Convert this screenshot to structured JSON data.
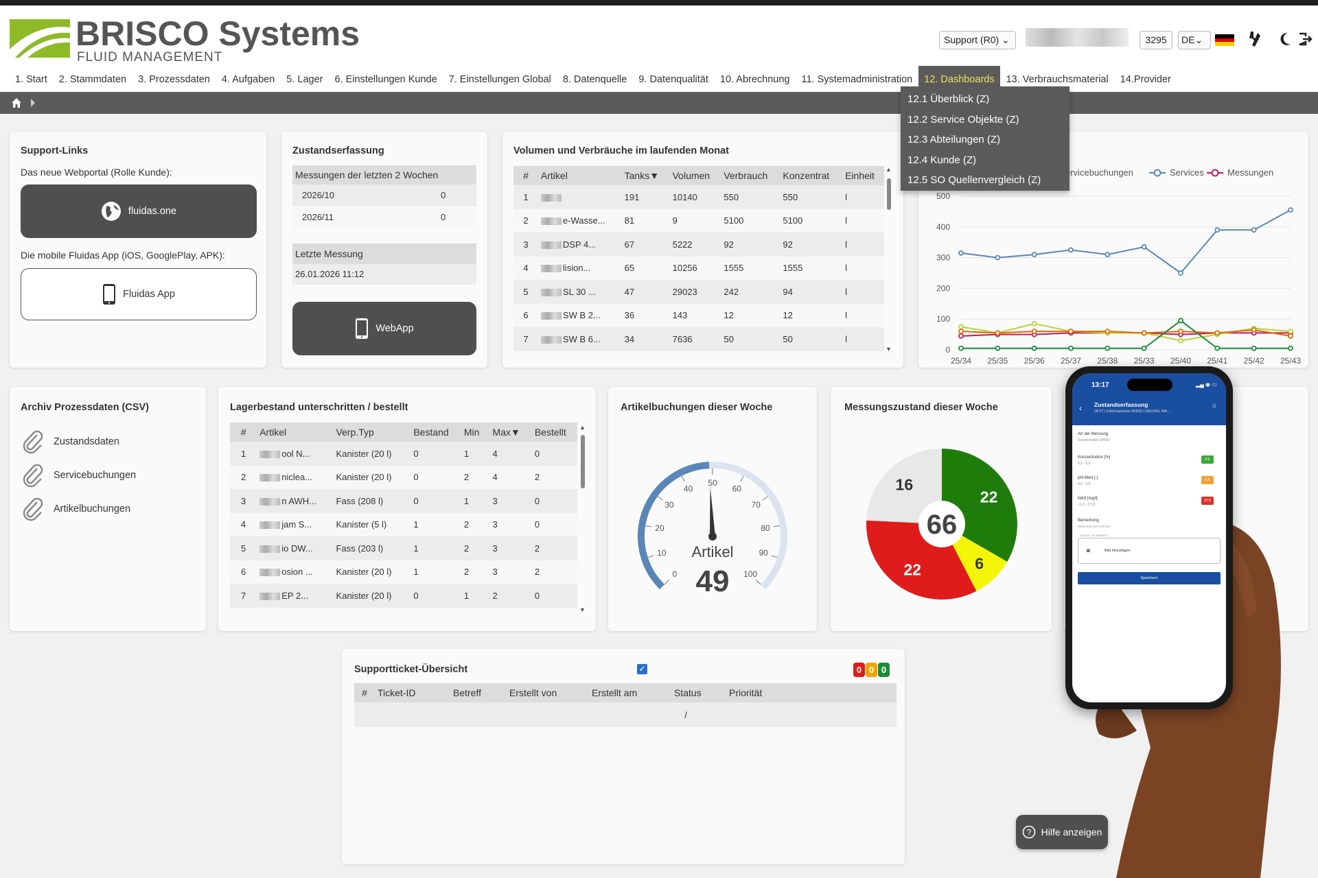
{
  "app": {
    "brand": "BRISCO Systems",
    "brand_sub": "FLUID MANAGEMENT",
    "support_select": "Support (R0)",
    "user_id_suffix": "3295",
    "language": "DE"
  },
  "colors": {
    "accent": "#e8e35c",
    "brand_green": "#8fba28",
    "dark": "#4f4f4f",
    "line_blue": "#5a86b8",
    "red": "#e01b1b",
    "yellow": "#f5f50a",
    "green": "#1e7d0a",
    "magenta": "#c2185b"
  },
  "menu": [
    {
      "label": "1. Start"
    },
    {
      "label": "2. Stammdaten"
    },
    {
      "label": "3. Prozessdaten"
    },
    {
      "label": "4. Aufgaben"
    },
    {
      "label": "5. Lager"
    },
    {
      "label": "6. Einstellungen Kunde"
    },
    {
      "label": "7. Einstellungen Global"
    },
    {
      "label": "8. Datenquelle"
    },
    {
      "label": "9. Datenqualität"
    },
    {
      "label": "10. Abrechnung"
    },
    {
      "label": "11. Systemadministration"
    },
    {
      "label": "12. Dashboards"
    },
    {
      "label": "13. Verbrauchsmaterial"
    },
    {
      "label": "14.Provider"
    }
  ],
  "dropdown": [
    "12.1 Überblick (Z)",
    "12.2 Service Objekte (Z)",
    "12.3 Abteilungen (Z)",
    "12.4 Kunde (Z)",
    "12.5 SO Quellenvergleich (Z)"
  ],
  "support": {
    "title": "Support-Links",
    "webportal_text": "Das neue Webportal (Rolle Kunde):",
    "webportal_btn": "fluidas.one",
    "app_text": "Die mobile Fluidas App (iOS, GooglePlay, APK):",
    "app_btn": "Fluidas App"
  },
  "zustand": {
    "title": "Zustandserfassung",
    "measure_header": "Messungen der letzten 2 Wochen",
    "rows": [
      {
        "period": "2026/10",
        "count": "0"
      },
      {
        "period": "2026/11",
        "count": "0"
      }
    ],
    "last_header": "Letzte Messung",
    "last_value": "26.01.2026 11:12",
    "webapp_btn": "WebApp"
  },
  "volumen": {
    "title": "Volumen und Verbräuche im laufenden Monat",
    "headers": [
      "#",
      "Artikel",
      "Tanks▼",
      "Volumen",
      "Verbrauch",
      "Konzentrat",
      "Einheit"
    ],
    "rows": [
      [
        "1",
        "",
        "191",
        "10140",
        "550",
        "550",
        "l"
      ],
      [
        "2",
        "e-Wasse...",
        "81",
        "9",
        "5100",
        "5100",
        "l"
      ],
      [
        "3",
        "DSP 4...",
        "67",
        "5222",
        "92",
        "92",
        "l"
      ],
      [
        "4",
        "lision...",
        "65",
        "10256",
        "1555",
        "1555",
        "l"
      ],
      [
        "5",
        "SL 30 ...",
        "47",
        "29023",
        "242",
        "94",
        "l"
      ],
      [
        "6",
        "SW B 2...",
        "36",
        "143",
        "12",
        "12",
        "l"
      ],
      [
        "7",
        "SW B 6...",
        "34",
        "7636",
        "50",
        "50",
        "l"
      ]
    ]
  },
  "chart_data": {
    "type": "line",
    "title": "",
    "x": [
      "25/34",
      "25/35",
      "25/36",
      "25/37",
      "25/38",
      "25/33",
      "25/40",
      "25/41",
      "25/42",
      "25/43"
    ],
    "ylim": [
      0,
      500
    ],
    "yticks": [
      0,
      100,
      200,
      300,
      400,
      500
    ],
    "legend": [
      "ervicebuchungen",
      "Services",
      "Messungen"
    ],
    "series": [
      {
        "name": "Services",
        "color": "#5a86b8",
        "values": [
          315,
          300,
          310,
          325,
          310,
          335,
          250,
          390,
          390,
          455
        ]
      },
      {
        "name": "Messungen",
        "color": "#c2185b",
        "values": [
          45,
          50,
          50,
          55,
          55,
          55,
          50,
          55,
          55,
          55
        ]
      },
      {
        "name": "",
        "color": "#b8d43a",
        "values": [
          75,
          55,
          85,
          60,
          55,
          55,
          30,
          50,
          70,
          60
        ]
      },
      {
        "name": "",
        "color": "#e06a00",
        "values": [
          60,
          55,
          60,
          60,
          60,
          55,
          60,
          55,
          65,
          45
        ]
      },
      {
        "name": "",
        "color": "#1e8a3a",
        "values": [
          5,
          5,
          5,
          5,
          5,
          5,
          95,
          5,
          5,
          5
        ]
      }
    ]
  },
  "archiv": {
    "title": "Archiv Prozessdaten (CSV)",
    "items": [
      "Zustandsdaten",
      "Servicebuchungen",
      "Artikelbuchungen"
    ]
  },
  "lager": {
    "title": "Lagerbestand unterschritten / bestellt",
    "headers": [
      "#",
      "Artikel",
      "Verp.Typ",
      "Bestand",
      "Min",
      "Max▼",
      "Bestellt"
    ],
    "rows": [
      [
        "1",
        "ool N...",
        "Kanister (20 l)",
        "0",
        "1",
        "4",
        "0"
      ],
      [
        "2",
        "niclea...",
        "Kanister (20 l)",
        "0",
        "2",
        "4",
        "2"
      ],
      [
        "3",
        "n AWH...",
        "Fass (208 l)",
        "0",
        "1",
        "3",
        "0"
      ],
      [
        "4",
        "jam S...",
        "Kanister (5 l)",
        "1",
        "2",
        "3",
        "0"
      ],
      [
        "5",
        "io DW...",
        "Fass (203 l)",
        "1",
        "2",
        "3",
        "2"
      ],
      [
        "6",
        "osion ...",
        "Kanister (20 l)",
        "1",
        "2",
        "3",
        "2"
      ],
      [
        "7",
        "EP 2...",
        "Kanister (20 l)",
        "0",
        "1",
        "2",
        "0"
      ]
    ]
  },
  "gauge": {
    "title": "Artikelbuchungen dieser Woche",
    "label": "Artikel",
    "value": "49",
    "min": 0,
    "max": 100,
    "ticks": [
      "0",
      "10",
      "20",
      "30",
      "40",
      "50",
      "60",
      "70",
      "80",
      "90",
      "100"
    ]
  },
  "pie": {
    "title": "Messungszustand dieser Woche",
    "total": "66",
    "slices": [
      {
        "label": "22",
        "value": 22,
        "color": "#1e7d0a"
      },
      {
        "label": "6",
        "value": 6,
        "color": "#f5f50a"
      },
      {
        "label": "22",
        "value": 22,
        "color": "#e01b1b"
      },
      {
        "label": "16",
        "value": 16,
        "color": "#e8e8e8"
      }
    ]
  },
  "ticket": {
    "title": "Supportticket-Übersicht",
    "headers": [
      "#",
      "Ticket-ID",
      "Betreff",
      "Erstellt von",
      "Erstellt am",
      "Status",
      "Priorität"
    ],
    "empty_cell": "/",
    "badges": [
      "0",
      "0",
      "0"
    ]
  },
  "phone": {
    "time": "13:17",
    "screen_title": "Zustandserfassung",
    "screen_sub": "DF77 | Fahrmaschine DHDD | DECKEL MA...",
    "field_art": "Art der Messung",
    "field_art_val": "Konzentration DHDD",
    "f1": "Konzentration [%]",
    "f1_range": "5.5 - 6.5",
    "f1_val": "6.0",
    "f2": "pH-Wert [-]",
    "f2_range": "8.0 - 9.5",
    "f2_val": "9.5",
    "f3": "Nitrit [mg/l]",
    "f3_range": "<1.0 - 2.5.0",
    "f3_val": "27.0",
    "remark": "Bemerkung",
    "remark_hint": "Wenn kalt und nicht leer",
    "photo_hint": "(0 max. 10 Dateien)",
    "photo_btn": "Bild hinzufügen",
    "save_btn": "Speichern"
  },
  "help_btn": "Hilfe anzeigen"
}
